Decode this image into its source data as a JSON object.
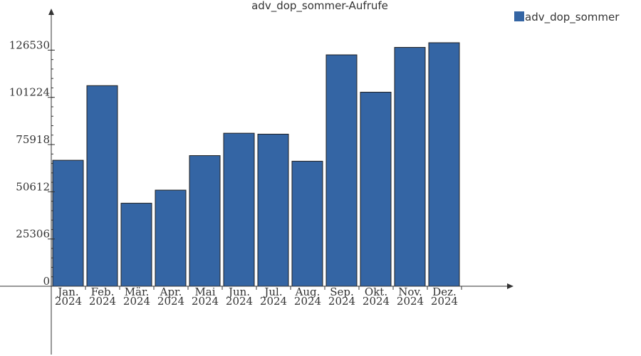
{
  "chart_data": {
    "type": "bar",
    "title": "adv_dop_sommer-Aufrufe",
    "categories": [
      [
        "Jan.",
        "2024"
      ],
      [
        "Feb.",
        "2024"
      ],
      [
        "Mär.",
        "2024"
      ],
      [
        "Apr.",
        "2024"
      ],
      [
        "Mai",
        "2024"
      ],
      [
        "Jun.",
        "2024"
      ],
      [
        "Jul.",
        "2024"
      ],
      [
        "Aug.",
        "2024"
      ],
      [
        "Sep.",
        "2024"
      ],
      [
        "Okt.",
        "2024"
      ],
      [
        "Nov.",
        "2024"
      ],
      [
        "Dez.",
        "2024"
      ]
    ],
    "series": [
      {
        "name": "adv_dop_sommer",
        "color": "#3465a4",
        "values": [
          67500,
          107500,
          44500,
          51500,
          70000,
          82000,
          81500,
          67000,
          124000,
          104000,
          128000,
          130500
        ]
      }
    ],
    "yticks": [
      0,
      25306,
      50612,
      75918,
      101224,
      126530
    ],
    "ylim": [
      0,
      145000
    ],
    "grid": false,
    "legend": "top-right"
  }
}
